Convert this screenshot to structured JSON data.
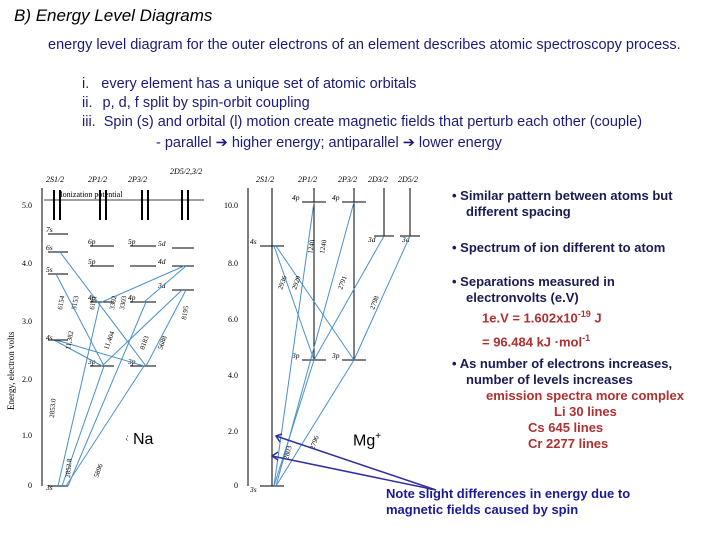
{
  "title": "B) Energy Level Diagrams",
  "intro": "energy level diagram for the outer electrons of an element describes atomic spectroscopy process.",
  "list": [
    {
      "marker": "i.",
      "text": "every element has a unique set of atomic orbitals"
    },
    {
      "marker": "ii.",
      "text": "p, d, f split by spin-orbit coupling"
    },
    {
      "marker": "iii.",
      "text": "Spin (s) and orbital (l) motion create magnetic fields that perturb each other (couple)"
    }
  ],
  "coupling": {
    "parallel": "- parallel",
    "higher": "higher energy; antiparallel",
    "lower": "lower energy"
  },
  "bullets": {
    "b1_line1": "Similar pattern between atoms but",
    "b1_line2": "different spacing",
    "b2": "Spectrum of ion different to atom",
    "b3_line1": "Separations measured in",
    "b3_line2": "electronvolts (e.V)",
    "ev_prefix": "1e.V = 1.602x10",
    "ev_exp": "-19",
    "ev_unit": " J",
    "kj_main": "= 96.484 kJ ·mol",
    "kj_exp": "-1",
    "b4_line1": "As number of electrons increases,",
    "b4_line2": "number of levels increases",
    "emission": "emission spectra more complex",
    "li": "Li 30 lines",
    "cs": "Cs 645 lines",
    "cr": "Cr 2277 lines"
  },
  "note_line1": "Note slight differences in energy due to",
  "note_line2": "magnetic fields caused by spin",
  "na_label": "Na",
  "mg_label": "Mg",
  "mg_sup": "+",
  "na_diagram": {
    "axis_label": "Energy, electron volts",
    "ionization": "Ionization potential",
    "ticks": [
      "5.0",
      "4.0",
      "3.0",
      "2.0",
      "1.0",
      "0"
    ],
    "cols": [
      "2S1/2",
      "2P1/2",
      "2P3/2",
      "2D5/2,3/2"
    ],
    "levels": [
      "7s",
      "6s",
      "5s",
      "4s",
      "3s",
      "6p",
      "5p",
      "4p",
      "3p",
      "5d",
      "4d",
      "3d",
      "5p",
      "4p",
      "3p"
    ],
    "transitions": [
      "6154",
      "6161",
      "11,382",
      "11,404",
      "5688",
      "8183",
      "8195",
      "5890",
      "5896",
      "2853.0",
      "2852.8",
      "3302",
      "3303",
      "5153"
    ]
  },
  "mg_diagram": {
    "ticks": [
      "10.0",
      "8.0",
      "6.0",
      "4.0",
      "2.0",
      "0"
    ],
    "cols": [
      "2S1/2",
      "2P1/2",
      "2P3/2",
      "2D3/2",
      "2D5/2"
    ],
    "levels": [
      "4p",
      "4p",
      "4s",
      "3d",
      "3d",
      "3p",
      "3p",
      "3s"
    ],
    "transitions": [
      "1240",
      "1240",
      "2936",
      "2929",
      "2791",
      "2798",
      "2803",
      "2796"
    ]
  }
}
